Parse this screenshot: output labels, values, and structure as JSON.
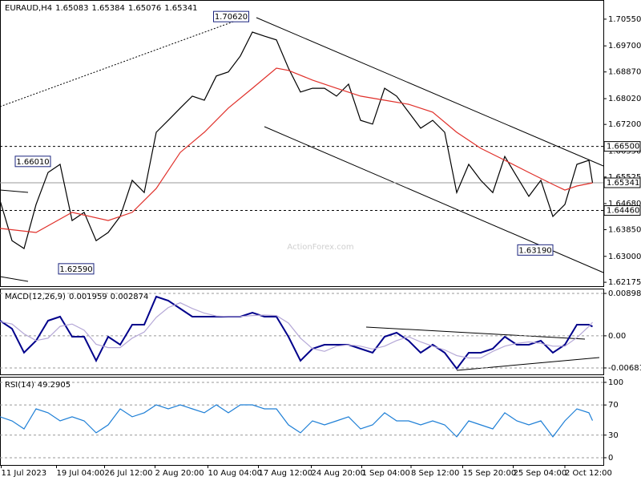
{
  "chart_data": [
    {
      "type": "line",
      "title": "EURAUD,H4",
      "ohlc": [
        1.65083,
        1.65384,
        1.65076,
        1.65341
      ],
      "watermark": "ActionForex.com",
      "xlim": [
        0,
        502
      ],
      "ylim": [
        1.6205,
        1.7116
      ],
      "yticks": [
        {
          "value": 1.7055,
          "label": "1.70550"
        },
        {
          "value": 1.697,
          "label": "1.69700"
        },
        {
          "value": 1.6887,
          "label": "1.68870"
        },
        {
          "value": 1.6802,
          "label": "1.68020"
        },
        {
          "value": 1.672,
          "label": "1.67200"
        },
        {
          "value": 1.6635,
          "label": "1.66350"
        },
        1.65525,
        {
          "value": 1.6468,
          "label": "1.64680"
        },
        {
          "value": 1.6385,
          "label": "1.63850"
        },
        {
          "value": 1.63,
          "label": "1.63000"
        },
        1.62175
      ],
      "levels": [
        {
          "value": 1.665,
          "label": "1.66500",
          "style": "dashed"
        },
        {
          "value": 1.6446,
          "label": "1.64460",
          "style": "dashed"
        },
        {
          "value": 1.65341,
          "label": "1.65341",
          "style": "solid"
        }
      ],
      "annotations": [
        {
          "x": 207,
          "value": 1.7062,
          "label": "1.70620"
        },
        {
          "x": 42,
          "value": 1.6601,
          "label": "1.66010"
        },
        {
          "x": 78,
          "value": 1.6259,
          "label": "1.62590"
        },
        {
          "x": 460,
          "value": 1.6319,
          "label": "1.63190"
        }
      ],
      "series": [
        {
          "color": "#000000",
          "x": [
            0,
            10,
            20,
            30,
            40,
            50,
            60,
            70,
            80,
            90,
            100,
            110,
            120,
            130,
            140,
            150,
            160,
            170,
            180,
            190,
            200,
            210,
            220,
            230,
            240,
            250,
            260,
            270,
            280,
            290,
            300,
            310,
            320,
            330,
            340,
            350,
            360,
            370,
            380,
            390,
            400,
            410,
            420,
            430,
            440,
            450,
            460,
            470,
            480,
            490,
            493
          ],
          "values": [
            1.6478,
            1.635,
            1.6325,
            1.6465,
            1.6567,
            1.6593,
            1.6414,
            1.644,
            1.635,
            1.6376,
            1.6427,
            1.6542,
            1.6503,
            1.6695,
            1.6733,
            1.6772,
            1.681,
            1.6797,
            1.6874,
            1.6887,
            1.6938,
            1.7014,
            1.7001,
            1.6989,
            1.6899,
            1.6823,
            1.6835,
            1.6835,
            1.681,
            1.6848,
            1.6733,
            1.6721,
            1.6835,
            1.681,
            1.6759,
            1.6708,
            1.6733,
            1.6695,
            1.6503,
            1.6593,
            1.6542,
            1.6503,
            1.6618,
            1.6554,
            1.6491,
            1.6542,
            1.6427,
            1.6465,
            1.6593,
            1.6606,
            1.65341
          ]
        },
        {
          "color": "#e0302a",
          "x": [
            0,
            30,
            60,
            90,
            110,
            130,
            150,
            170,
            190,
            210,
            230,
            240,
            260,
            280,
            300,
            320,
            340,
            360,
            380,
            400,
            420,
            440,
            460,
            470,
            480,
            493
          ],
          "values": [
            1.6389,
            1.6376,
            1.644,
            1.6414,
            1.644,
            1.6516,
            1.6631,
            1.6695,
            1.6772,
            1.6835,
            1.6899,
            1.6892,
            1.6861,
            1.6835,
            1.681,
            1.6797,
            1.6784,
            1.6759,
            1.6695,
            1.6644,
            1.6606,
            1.6567,
            1.6529,
            1.6511,
            1.6524,
            1.6534
          ]
        }
      ]
    },
    {
      "type": "line",
      "title": "MACD(12,26,9)",
      "readings": [
        0.001959,
        0.002874
      ],
      "grid": true,
      "xlim": [
        0,
        502
      ],
      "ylim": [
        -0.00818,
        0.01001
      ],
      "yticks": [
        0.008986,
        {
          "value": 0,
          "label": "0.00"
        },
        -0.006816
      ],
      "series": [
        {
          "color": "#00008b",
          "x": [
            0,
            10,
            20,
            30,
            40,
            50,
            60,
            70,
            80,
            90,
            100,
            110,
            120,
            130,
            140,
            150,
            160,
            170,
            180,
            190,
            200,
            210,
            220,
            230,
            240,
            250,
            260,
            270,
            280,
            290,
            300,
            310,
            320,
            330,
            340,
            350,
            360,
            370,
            380,
            390,
            400,
            410,
            420,
            430,
            440,
            450,
            460,
            470,
            480,
            490,
            493
          ],
          "values": [
            0.00321,
            0.00151,
            -0.00355,
            -0.00104,
            0.00321,
            0.00406,
            -0.00019,
            -0.00019,
            -0.00528,
            -0.00019,
            -0.00189,
            0.00236,
            0.00236,
            0.00831,
            0.00746,
            0.00576,
            0.00406,
            0.00406,
            0.00406,
            0.00406,
            0.00406,
            0.00491,
            0.00406,
            0.00406,
            -0.00019,
            -0.00528,
            -0.00274,
            -0.00189,
            -0.00189,
            -0.00189,
            -0.00274,
            -0.00359,
            -0.00019,
            0.00066,
            -0.00104,
            -0.00359,
            -0.00189,
            -0.00359,
            -0.00698,
            -0.00359,
            -0.00359,
            -0.00274,
            -0.00019,
            -0.00189,
            -0.00189,
            -0.00104,
            -0.00359,
            -0.00189,
            0.00236,
            0.00236,
            0.001959
          ]
        },
        {
          "color": "#b4a7d6",
          "x": [
            0,
            10,
            20,
            30,
            40,
            50,
            60,
            70,
            80,
            90,
            100,
            110,
            120,
            130,
            140,
            150,
            160,
            170,
            180,
            190,
            200,
            210,
            220,
            230,
            240,
            250,
            260,
            270,
            280,
            290,
            300,
            310,
            320,
            330,
            340,
            350,
            360,
            370,
            380,
            390,
            400,
            410,
            420,
            430,
            440,
            450,
            460,
            470,
            480,
            490,
            493
          ],
          "values": [
            0.003,
            0.0025,
            0.0004,
            -0.001,
            -0.0005,
            0.002,
            0.0025,
            0.0012,
            -0.0018,
            -0.0025,
            -0.0025,
            -0.0005,
            0.0008,
            0.0039,
            0.006,
            0.007,
            0.0058,
            0.0048,
            0.0042,
            0.0041,
            0.0041,
            0.0043,
            0.0044,
            0.0043,
            0.0027,
            -0.0005,
            -0.0027,
            -0.0033,
            -0.0022,
            -0.0019,
            -0.0022,
            -0.0028,
            -0.0022,
            -0.001,
            -0.0002,
            -0.0013,
            -0.0022,
            -0.003,
            -0.0042,
            -0.0047,
            -0.0047,
            -0.0033,
            -0.0022,
            -0.0016,
            -0.0013,
            -0.0016,
            -0.0022,
            -0.0022,
            -0.0004,
            0.002,
            0.002874
          ]
        }
      ]
    },
    {
      "type": "line",
      "title": "RSI(14)",
      "readings": [
        49.2905
      ],
      "grid": true,
      "xlim": [
        0,
        502
      ],
      "ylim": [
        -9.6,
        107.4
      ],
      "yticks": [
        100,
        70,
        30,
        0
      ],
      "xticks": [
        {
          "value": 1,
          "label": "11 Jul 2023"
        },
        {
          "value": 47,
          "label": "19 Jul 04:00"
        },
        {
          "value": 87,
          "label": "26 Jul 12:00"
        },
        {
          "value": 129,
          "label": "2 Aug 20:00"
        },
        {
          "value": 173,
          "label": "10 Aug 04:00"
        },
        {
          "value": 215,
          "label": "17 Aug 12:00"
        },
        {
          "value": 259,
          "label": "24 Aug 20:00"
        },
        {
          "value": 301,
          "label": "1 Sep 04:00"
        },
        {
          "value": 342,
          "label": "8 Sep 12:00"
        },
        {
          "value": 385,
          "label": "15 Sep 20:00"
        },
        {
          "value": 427,
          "label": "25 Sep 04:00"
        },
        {
          "value": 470,
          "label": "2 Oct 12:00"
        }
      ],
      "series": [
        {
          "color": "#1e7fd6",
          "x": [
            0,
            10,
            20,
            30,
            40,
            50,
            60,
            70,
            80,
            90,
            100,
            110,
            120,
            130,
            140,
            150,
            160,
            170,
            180,
            190,
            200,
            210,
            220,
            230,
            240,
            250,
            260,
            270,
            280,
            290,
            300,
            310,
            320,
            330,
            340,
            350,
            360,
            370,
            380,
            390,
            400,
            410,
            420,
            430,
            440,
            450,
            460,
            470,
            480,
            490,
            493
          ],
          "values": [
            54.3,
            48.9,
            38.3,
            64.9,
            59.6,
            48.9,
            54.3,
            48.9,
            33.0,
            43.6,
            64.9,
            54.3,
            59.6,
            70.2,
            64.9,
            70.2,
            64.9,
            59.6,
            70.2,
            59.6,
            70.2,
            70.2,
            64.9,
            64.9,
            43.6,
            33.0,
            48.9,
            43.6,
            48.9,
            54.3,
            38.3,
            43.6,
            59.6,
            48.9,
            48.9,
            43.6,
            48.9,
            43.6,
            27.7,
            48.9,
            43.6,
            38.3,
            59.6,
            48.9,
            43.6,
            48.9,
            27.7,
            48.9,
            64.9,
            59.6,
            49.29
          ]
        }
      ]
    }
  ]
}
